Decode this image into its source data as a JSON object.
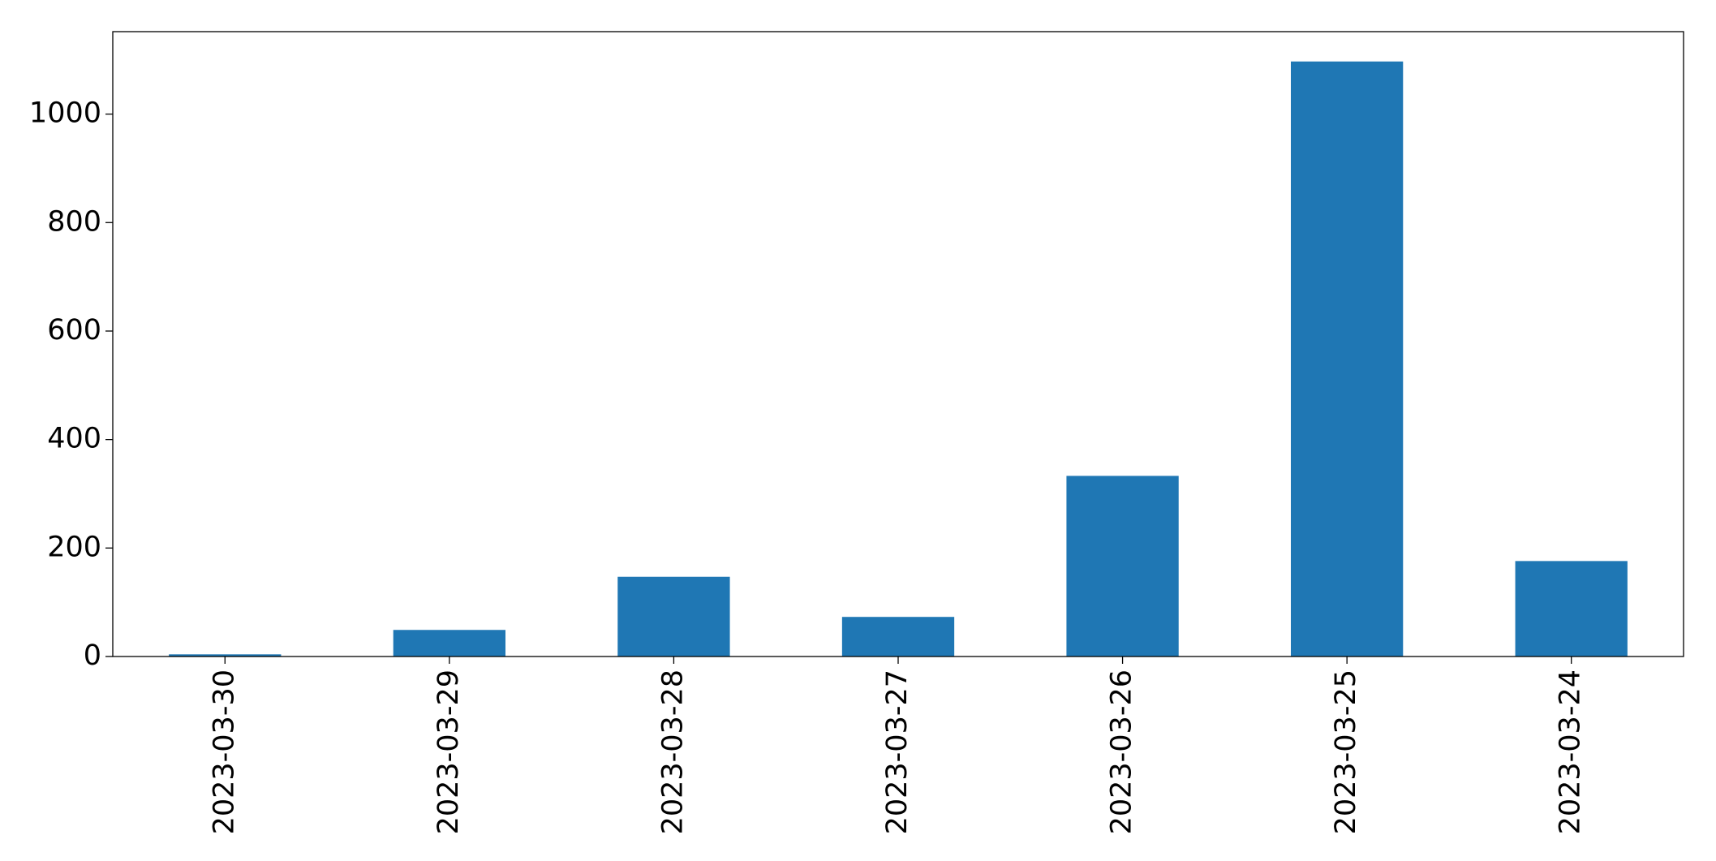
{
  "chart_data": {
    "type": "bar",
    "categories": [
      "2023-03-30",
      "2023-03-29",
      "2023-03-28",
      "2023-03-27",
      "2023-03-26",
      "2023-03-25",
      "2023-03-24"
    ],
    "values": [
      4,
      49,
      147,
      73,
      333,
      1097,
      176
    ],
    "color": "#1f77b4",
    "ylim": [
      0,
      1152
    ],
    "yticks": [
      0,
      200,
      400,
      600,
      800,
      1000
    ],
    "grid": false
  }
}
